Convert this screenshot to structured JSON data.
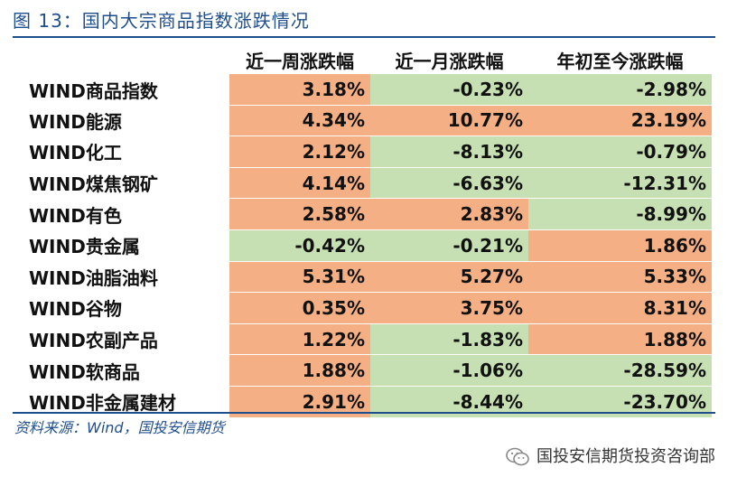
{
  "caption": "图 13：国内大宗商品指数涨跌情况",
  "table": {
    "headers": [
      "",
      "近一周涨跌幅",
      "近一月涨跌幅",
      "年初至今涨跌幅"
    ],
    "rows": [
      {
        "name": "WIND商品指数",
        "week": "3.18%",
        "month": "-0.23%",
        "ytd": "-2.98%"
      },
      {
        "name": "WIND能源",
        "week": "4.34%",
        "month": "10.77%",
        "ytd": "23.19%"
      },
      {
        "name": "WIND化工",
        "week": "2.12%",
        "month": "-8.13%",
        "ytd": "-0.79%"
      },
      {
        "name": "WIND煤焦钢矿",
        "week": "4.14%",
        "month": "-6.63%",
        "ytd": "-12.31%"
      },
      {
        "name": "WIND有色",
        "week": "2.58%",
        "month": "2.83%",
        "ytd": "-8.99%"
      },
      {
        "name": "WIND贵金属",
        "week": "-0.42%",
        "month": "-0.21%",
        "ytd": "1.86%"
      },
      {
        "name": "WIND油脂油料",
        "week": "5.31%",
        "month": "5.27%",
        "ytd": "5.33%"
      },
      {
        "name": "WIND谷物",
        "week": "0.35%",
        "month": "3.75%",
        "ytd": "8.31%"
      },
      {
        "name": "WIND农副产品",
        "week": "1.22%",
        "month": "-1.83%",
        "ytd": "1.88%"
      },
      {
        "name": "WIND软商品",
        "week": "1.88%",
        "month": "-1.06%",
        "ytd": "-28.59%"
      },
      {
        "name": "WIND非金属建材",
        "week": "2.91%",
        "month": "-8.44%",
        "ytd": "-23.70%"
      }
    ]
  },
  "source": "资料来源：Wind，国投安信期货",
  "watermark": "国投安信期货投资咨询部",
  "colors": {
    "up": "#f4b084",
    "down": "#c6e0b4",
    "accent": "#1f4e8c"
  },
  "icons": {
    "watermark_icon": "wechat-icon"
  }
}
